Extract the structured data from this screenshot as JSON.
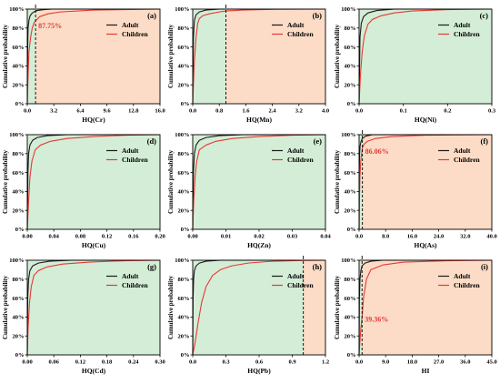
{
  "figure": {
    "colors": {
      "adult": "#1a1a1a",
      "children": "#e53935",
      "fill_green": "#d4edd6",
      "fill_orange": "#fcdcc6",
      "annotation": "#e53935"
    },
    "legend": {
      "adult": "Adult",
      "children": "Children"
    }
  },
  "chart_data": [
    {
      "type": "line",
      "panel": "(a)",
      "xlabel": "HQ(Cr)",
      "ylabel": "Cumulative probability",
      "xlim": [
        0,
        16
      ],
      "xticks": [
        "0.0",
        "3.2",
        "6.4",
        "9.6",
        "12.8",
        "16.0"
      ],
      "ylim": [
        0,
        100
      ],
      "yticks": [
        "0%",
        "20%",
        "40%",
        "60%",
        "80%",
        "100%"
      ],
      "threshold": 1,
      "annotation": "87.75%",
      "series": [
        {
          "name": "Adult",
          "x": [
            0,
            0.05,
            0.1,
            0.2,
            0.3,
            0.5,
            0.8,
            1.2,
            2,
            3,
            16
          ],
          "y": [
            0,
            60,
            80,
            88,
            92,
            95,
            97,
            98.5,
            99.5,
            100,
            100
          ]
        },
        {
          "name": "Children",
          "x": [
            0,
            0.1,
            0.2,
            0.4,
            0.6,
            0.8,
            1.0,
            1.5,
            2.5,
            4,
            8,
            16
          ],
          "y": [
            0,
            30,
            55,
            70,
            80,
            85,
            87.75,
            92,
            95,
            97,
            99,
            100
          ]
        }
      ]
    },
    {
      "type": "line",
      "panel": "(b)",
      "xlabel": "HQ(Mn)",
      "ylabel": "Cumulative probability",
      "xlim": [
        0,
        4
      ],
      "xticks": [
        "0.0",
        "0.8",
        "1.6",
        "2.4",
        "3.2",
        "4.0"
      ],
      "ylim": [
        0,
        100
      ],
      "yticks": [
        "0%",
        "20%",
        "40%",
        "60%",
        "80%",
        "100%"
      ],
      "threshold": 1,
      "series": [
        {
          "name": "Adult",
          "x": [
            0,
            0.02,
            0.05,
            0.1,
            0.2,
            0.4,
            0.8,
            4
          ],
          "y": [
            0,
            70,
            88,
            94,
            97,
            99,
            100,
            100
          ]
        },
        {
          "name": "Children",
          "x": [
            0,
            0.02,
            0.05,
            0.1,
            0.15,
            0.2,
            0.3,
            0.5,
            0.8,
            1.0,
            1.5,
            2.5,
            4
          ],
          "y": [
            0,
            20,
            45,
            70,
            85,
            90,
            93,
            95,
            97,
            98,
            99,
            99.8,
            100
          ]
        }
      ]
    },
    {
      "type": "line",
      "panel": "(c)",
      "xlabel": "HQ(Ni)",
      "ylabel": "Cumulative probability",
      "xlim": [
        0,
        0.3
      ],
      "xticks": [
        "0.0",
        "0.1",
        "0.2",
        "0.3"
      ],
      "ylim": [
        0,
        100
      ],
      "yticks": [
        "0%",
        "20%",
        "40%",
        "60%",
        "80%",
        "100%"
      ],
      "series": [
        {
          "name": "Adult",
          "x": [
            0,
            0.002,
            0.005,
            0.01,
            0.02,
            0.04,
            0.08,
            0.3
          ],
          "y": [
            0,
            70,
            85,
            92,
            96,
            98.5,
            100,
            100
          ]
        },
        {
          "name": "Children",
          "x": [
            0,
            0.003,
            0.007,
            0.012,
            0.02,
            0.03,
            0.05,
            0.08,
            0.12,
            0.2,
            0.3
          ],
          "y": [
            0,
            30,
            55,
            72,
            84,
            89,
            93,
            96,
            98,
            99.5,
            100
          ]
        }
      ]
    },
    {
      "type": "line",
      "panel": "(d)",
      "xlabel": "HQ(Cu)",
      "ylabel": "Cumulative probability",
      "xlim": [
        0,
        0.2
      ],
      "xticks": [
        "0.00",
        "0.04",
        "0.08",
        "0.12",
        "0.16",
        "0.20"
      ],
      "ylim": [
        0,
        100
      ],
      "yticks": [
        "0%",
        "20%",
        "40%",
        "60%",
        "80%",
        "100%"
      ],
      "series": [
        {
          "name": "Adult",
          "x": [
            0,
            0.001,
            0.002,
            0.004,
            0.008,
            0.015,
            0.03,
            0.06,
            0.2
          ],
          "y": [
            0,
            60,
            80,
            89,
            94,
            97,
            99,
            100,
            100
          ]
        },
        {
          "name": "Children",
          "x": [
            0,
            0.002,
            0.004,
            0.007,
            0.012,
            0.02,
            0.035,
            0.06,
            0.1,
            0.15,
            0.2
          ],
          "y": [
            0,
            30,
            55,
            72,
            84,
            89,
            93,
            96,
            98,
            99.5,
            100
          ]
        }
      ]
    },
    {
      "type": "line",
      "panel": "(e)",
      "xlabel": "HQ(Zn)",
      "ylabel": "Cumulative probability",
      "xlim": [
        0,
        0.04
      ],
      "xticks": [
        "0.00",
        "0.01",
        "0.02",
        "0.03",
        "0.04"
      ],
      "ylim": [
        0,
        100
      ],
      "yticks": [
        "0%",
        "20%",
        "40%",
        "60%",
        "80%",
        "100%"
      ],
      "series": [
        {
          "name": "Adult",
          "x": [
            0,
            0.0002,
            0.0005,
            0.001,
            0.002,
            0.004,
            0.008,
            0.015,
            0.04
          ],
          "y": [
            0,
            60,
            80,
            89,
            94,
            97,
            99,
            100,
            100
          ]
        },
        {
          "name": "Children",
          "x": [
            0,
            0.0003,
            0.0007,
            0.0012,
            0.002,
            0.004,
            0.007,
            0.012,
            0.02,
            0.03,
            0.04
          ],
          "y": [
            0,
            30,
            55,
            72,
            84,
            89,
            93,
            96,
            98,
            99.5,
            100
          ]
        }
      ]
    },
    {
      "type": "line",
      "panel": "(f)",
      "xlabel": "HQ(As)",
      "ylabel": "Cumulative probability",
      "xlim": [
        0,
        40
      ],
      "xticks": [
        "0.0",
        "8.0",
        "16.0",
        "24.0",
        "32.0",
        "40.0"
      ],
      "ylim": [
        0,
        100
      ],
      "yticks": [
        "0%",
        "20%",
        "40%",
        "60%",
        "80%",
        "100%"
      ],
      "threshold": 1,
      "annotation": "86.06%",
      "series": [
        {
          "name": "Adult",
          "x": [
            0,
            0.05,
            0.15,
            0.3,
            0.6,
            1,
            2,
            4,
            40
          ],
          "y": [
            0,
            60,
            80,
            88,
            93,
            96,
            98.5,
            100,
            100
          ]
        },
        {
          "name": "Children",
          "x": [
            0,
            0.1,
            0.25,
            0.5,
            0.75,
            1,
            1.5,
            2.5,
            5,
            10,
            20,
            40
          ],
          "y": [
            0,
            30,
            55,
            72,
            80,
            86.06,
            90,
            93,
            96,
            98,
            99.5,
            100
          ]
        }
      ]
    },
    {
      "type": "line",
      "panel": "(g)",
      "xlabel": "HQ(Cd)",
      "ylabel": "Cumulative probability",
      "xlim": [
        0,
        0.3
      ],
      "xticks": [
        "0.00",
        "0.06",
        "0.12",
        "0.18",
        "0.24",
        "0.30"
      ],
      "ylim": [
        0,
        100
      ],
      "yticks": [
        "0%",
        "20%",
        "40%",
        "60%",
        "80%",
        "100%"
      ],
      "series": [
        {
          "name": "Adult",
          "x": [
            0,
            0.001,
            0.003,
            0.006,
            0.012,
            0.025,
            0.05,
            0.1,
            0.3
          ],
          "y": [
            0,
            60,
            80,
            89,
            94,
            97,
            99,
            100,
            100
          ]
        },
        {
          "name": "Children",
          "x": [
            0,
            0.002,
            0.005,
            0.009,
            0.015,
            0.025,
            0.045,
            0.08,
            0.14,
            0.22,
            0.3
          ],
          "y": [
            0,
            30,
            55,
            72,
            84,
            89,
            93,
            96,
            98,
            99.5,
            100
          ]
        }
      ]
    },
    {
      "type": "line",
      "panel": "(h)",
      "xlabel": "HQ(Pb)",
      "ylabel": "Cumulative probability",
      "xlim": [
        0,
        1.2
      ],
      "xticks": [
        "0.0",
        "0.3",
        "0.6",
        "0.9",
        "1.2"
      ],
      "ylim": [
        0,
        100
      ],
      "yticks": [
        "0%",
        "20%",
        "40%",
        "60%",
        "80%",
        "100%"
      ],
      "threshold": 1,
      "series": [
        {
          "name": "Adult",
          "x": [
            0,
            0.003,
            0.008,
            0.015,
            0.03,
            0.06,
            0.12,
            0.25,
            1.2
          ],
          "y": [
            0,
            60,
            80,
            89,
            94,
            97,
            99,
            100,
            100
          ]
        },
        {
          "name": "Children",
          "x": [
            0,
            0.02,
            0.05,
            0.08,
            0.12,
            0.18,
            0.25,
            0.35,
            0.5,
            0.7,
            1.0,
            1.2
          ],
          "y": [
            0,
            12,
            35,
            55,
            72,
            84,
            90,
            94,
            97,
            98.8,
            99.8,
            100
          ]
        }
      ]
    },
    {
      "type": "line",
      "panel": "(i)",
      "xlabel": "HI",
      "ylabel": "Cumulative probability",
      "xlim": [
        0,
        45
      ],
      "xticks": [
        "0.0",
        "9.0",
        "18.0",
        "27.0",
        "36.0",
        "45.0"
      ],
      "ylim": [
        0,
        100
      ],
      "yticks": [
        "0%",
        "20%",
        "40%",
        "60%",
        "80%",
        "100%"
      ],
      "threshold": 1,
      "annotation": "39.36%",
      "series": [
        {
          "name": "Adult",
          "x": [
            0,
            0.1,
            0.3,
            0.6,
            1,
            2,
            4,
            8,
            45
          ],
          "y": [
            0,
            60,
            80,
            89,
            94,
            97,
            99,
            100,
            100
          ]
        },
        {
          "name": "Children",
          "x": [
            0,
            0.3,
            0.6,
            1,
            1.5,
            2.5,
            4,
            8,
            15,
            30,
            45
          ],
          "y": [
            0,
            15,
            28,
            39.36,
            60,
            80,
            90,
            95,
            98,
            99.5,
            100
          ]
        }
      ]
    }
  ]
}
